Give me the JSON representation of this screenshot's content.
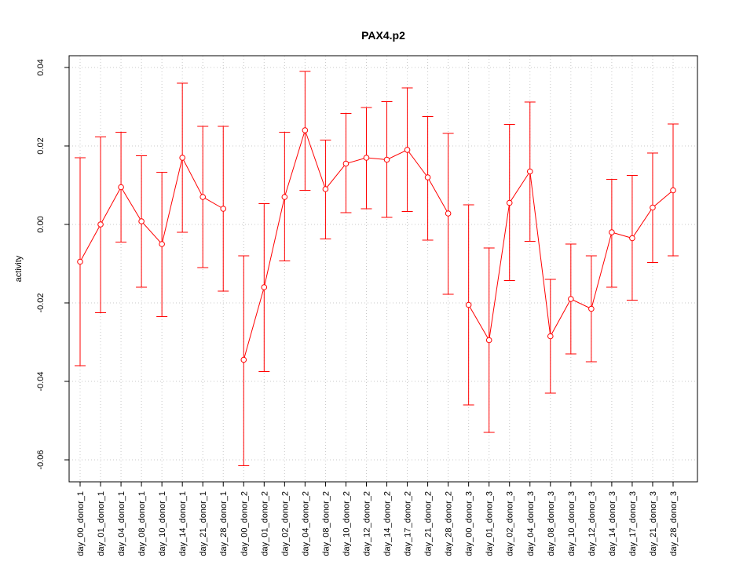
{
  "chart_data": {
    "type": "line",
    "title": "PAX4.p2",
    "xlabel": "",
    "ylabel": "activity",
    "ylim": [
      -0.065,
      0.04
    ],
    "yticks": [
      0.04,
      0.02,
      0.0,
      -0.02,
      -0.04,
      -0.06
    ],
    "ytick_labels": [
      "0.04",
      "0.02",
      "0.00",
      "-0.02",
      "-0.04",
      "-0.06"
    ],
    "grid": true,
    "categories": [
      "day_00_donor_1",
      "day_01_donor_1",
      "day_04_donor_1",
      "day_08_donor_1",
      "day_10_donor_1",
      "day_14_donor_1",
      "day_21_donor_1",
      "day_28_donor_1",
      "day_00_donor_2",
      "day_01_donor_2",
      "day_02_donor_2",
      "day_04_donor_2",
      "day_08_donor_2",
      "day_10_donor_2",
      "day_12_donor_2",
      "day_14_donor_2",
      "day_17_donor_2",
      "day_21_donor_2",
      "day_28_donor_2",
      "day_00_donor_3",
      "day_01_donor_3",
      "day_02_donor_3",
      "day_04_donor_3",
      "day_08_donor_3",
      "day_10_donor_3",
      "day_12_donor_3",
      "day_14_donor_3",
      "day_17_donor_3",
      "day_21_donor_3",
      "day_28_donor_3"
    ],
    "groups": [
      [
        0,
        7
      ],
      [
        8,
        18
      ],
      [
        19,
        29
      ]
    ],
    "series": [
      {
        "color": "#ff0000",
        "values": [
          -0.0095,
          0.0,
          0.0095,
          0.0008,
          -0.005,
          0.017,
          0.007,
          0.004,
          -0.0345,
          -0.016,
          0.007,
          0.024,
          0.009,
          0.0155,
          0.017,
          0.0165,
          0.019,
          0.012,
          0.0028,
          -0.0205,
          -0.0295,
          0.0055,
          0.0135,
          -0.0285,
          -0.019,
          -0.0215,
          -0.002,
          -0.0035,
          0.0043,
          0.0087
        ],
        "lower": [
          -0.036,
          -0.0225,
          -0.0045,
          -0.016,
          -0.0235,
          -0.002,
          -0.011,
          -0.017,
          -0.0615,
          -0.0375,
          -0.0093,
          0.0087,
          -0.0037,
          0.003,
          0.004,
          0.0018,
          0.0033,
          -0.004,
          -0.0178,
          -0.046,
          -0.053,
          -0.0143,
          -0.0043,
          -0.043,
          -0.033,
          -0.035,
          -0.016,
          -0.0193,
          -0.0097,
          -0.008
        ],
        "upper": [
          0.017,
          0.0223,
          0.0235,
          0.0175,
          0.0133,
          0.036,
          0.025,
          0.025,
          -0.008,
          0.0053,
          0.0235,
          0.039,
          0.0215,
          0.0283,
          0.0298,
          0.0313,
          0.0348,
          0.0275,
          0.0232,
          0.005,
          -0.006,
          0.0255,
          0.0312,
          -0.014,
          -0.005,
          -0.008,
          0.0115,
          0.0125,
          0.0182,
          0.0256
        ]
      }
    ]
  }
}
